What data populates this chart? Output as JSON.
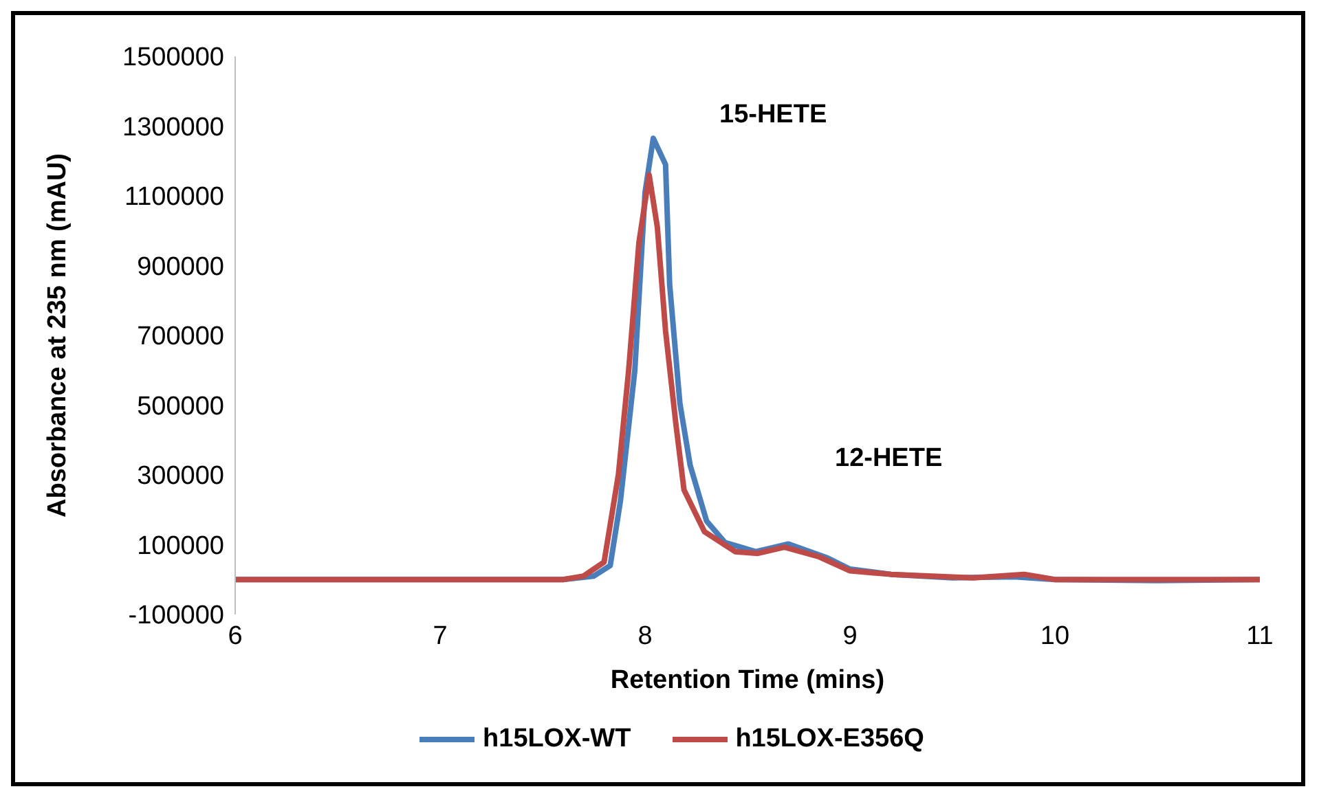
{
  "chart_data": {
    "type": "line",
    "xlabel": "Retention Time (mins)",
    "ylabel": "Absorbance at 235 nm (mAU)",
    "xlim": [
      6,
      11
    ],
    "xticks": [
      6,
      7,
      8,
      9,
      10,
      11
    ],
    "ylim": [
      -100000,
      1500000
    ],
    "yticks": [
      -100000,
      100000,
      300000,
      500000,
      700000,
      900000,
      1100000,
      1300000,
      1500000
    ],
    "grid": false,
    "legend": "bottom",
    "marker": "none",
    "line_style": "solid",
    "annotations": [
      "15-HETE",
      "12-HETE"
    ],
    "series": [
      {
        "name": "h15LOX-WT",
        "color": "#4a7ebb",
        "x": [
          6,
          7,
          7.6,
          7.75,
          7.83,
          7.88,
          7.95,
          8.0,
          8.04,
          8.1,
          8.12,
          8.17,
          8.22,
          8.3,
          8.39,
          8.54,
          8.7,
          8.89,
          9.0,
          9.2,
          9.5,
          9.8,
          10,
          10.5,
          11
        ],
        "values": [
          0,
          0,
          0,
          10000,
          40000,
          226000,
          600000,
          1110000,
          1265000,
          1190000,
          846000,
          505000,
          328000,
          168000,
          106000,
          80000,
          102000,
          62000,
          30000,
          15000,
          5000,
          8000,
          0,
          -3000,
          0
        ]
      },
      {
        "name": "h15LOX-E356Q",
        "color": "#be4b48",
        "x": [
          6,
          7,
          7.6,
          7.7,
          7.8,
          7.87,
          7.92,
          7.97,
          8.02,
          8.06,
          8.1,
          8.15,
          8.19,
          8.29,
          8.44,
          8.55,
          8.68,
          8.85,
          9.0,
          9.2,
          9.6,
          9.85,
          10,
          10.5,
          11
        ],
        "values": [
          0,
          0,
          0,
          10000,
          50000,
          301000,
          600000,
          966000,
          1160000,
          1010000,
          713000,
          448000,
          257000,
          137000,
          80000,
          75000,
          93000,
          65000,
          25000,
          15000,
          5000,
          15000,
          0,
          0,
          0
        ]
      }
    ]
  }
}
